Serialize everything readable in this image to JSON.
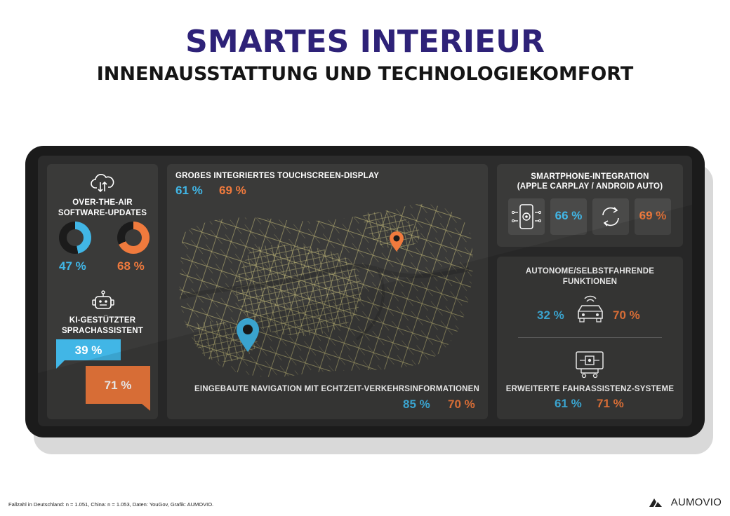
{
  "title": "SMARTES INTERIEUR",
  "subtitle": "INNENAUSSTATTUNG UND TECHNOLOGIEKOMFORT",
  "colors": {
    "title": "#2e2278",
    "blue": "#41b6e6",
    "orange": "#f07a3d",
    "panel": "#3a3a39",
    "device": "#1b1b1b"
  },
  "ota": {
    "label_line1": "OVER-THE-AIR",
    "label_line2": "SOFTWARE-UPDATES",
    "blue_pct": "47 %",
    "orange_pct": "68 %",
    "blue_value": 47,
    "orange_value": 68,
    "icon": "cloud-download-icon"
  },
  "assistant": {
    "label_line1": "KI-GESTÜTZTER",
    "label_line2": "SPRACHASSISTENT",
    "blue_pct": "39 %",
    "orange_pct": "71 %",
    "icon": "robot-icon"
  },
  "touchscreen": {
    "label": "GROẞES INTEGRIERTES TOUCHSCREEN-DISPLAY",
    "blue_pct": "61 %",
    "orange_pct": "69 %"
  },
  "navigation": {
    "label": "EINGEBAUTE NAVIGATION MIT ECHTZEIT-VERKEHRSINFORMATIONEN",
    "blue_pct": "85 %",
    "orange_pct": "70 %",
    "icon": "map-pin-icon"
  },
  "smartphone": {
    "label_line1": "SMARTPHONE-INTEGRATION",
    "label_line2": "(APPLE CARPLAY / ANDROID AUTO)",
    "blue_pct": "66 %",
    "orange_pct": "69 %",
    "icons": [
      "phone-settings-icon",
      "sync-icon"
    ]
  },
  "autonomous": {
    "label_line1": "AUTONOME/SELBSTFAHRENDE",
    "label_line2": "FUNKTIONEN",
    "blue_pct": "32 %",
    "orange_pct": "70 %",
    "icon": "connected-car-icon"
  },
  "adas": {
    "label": "ERWEITERTE FAHRASSISTENZ-SYSTEME",
    "blue_pct": "61 %",
    "orange_pct": "71 %",
    "icon": "chip-vehicle-icon"
  },
  "footer": {
    "note": "Fallzahl in Deutschland: n = 1.051, China: n = 1.053, Daten: YouGov, Grafik: AUMOVIO.",
    "brand": "AUMOVIO"
  }
}
